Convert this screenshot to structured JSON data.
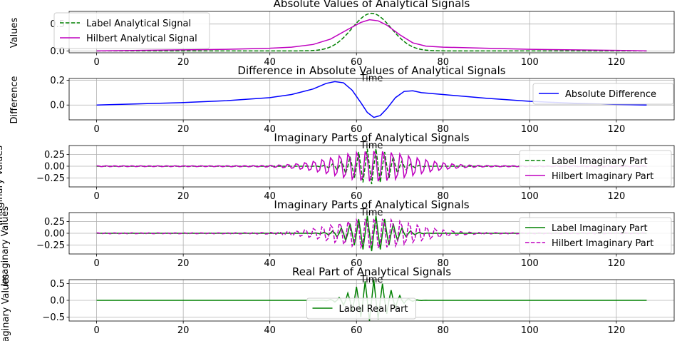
{
  "chart_data": [
    {
      "type": "line",
      "title": "Absolute Values of Analytical Signals",
      "xlabel": "Time",
      "ylabel": "Values",
      "xlim": [
        -6.35,
        133.35
      ],
      "ylim": [
        -0.035,
        0.735
      ],
      "x_ticks": [
        0,
        20,
        40,
        60,
        80,
        100,
        120
      ],
      "y_ticks": [
        0.0,
        0.5
      ],
      "y_tick_labels": [
        "0.0",
        "0.5"
      ],
      "grid": true,
      "legend_placement": "upper-left",
      "legend": [
        "Label Analytical Signal",
        "Hilbert Analytical Signal"
      ],
      "series": [
        {
          "name": "Label Analytical Signal",
          "color": "#008000",
          "style": "dashed",
          "kind": "envelope",
          "generator": {
            "amplitude": 0.7,
            "center": 63.5,
            "width": 4.5,
            "floor": 0.0
          }
        },
        {
          "name": "Hilbert Analytical Signal",
          "color": "#bf00bf",
          "style": "solid",
          "points": [
            [
              0,
              0.0
            ],
            [
              10,
              0.01
            ],
            [
              20,
              0.02
            ],
            [
              30,
              0.03
            ],
            [
              40,
              0.05
            ],
            [
              45,
              0.07
            ],
            [
              50,
              0.12
            ],
            [
              54,
              0.22
            ],
            [
              58,
              0.4
            ],
            [
              61,
              0.53
            ],
            [
              63,
              0.58
            ],
            [
              65,
              0.56
            ],
            [
              67,
              0.48
            ],
            [
              70,
              0.3
            ],
            [
              73,
              0.15
            ],
            [
              76,
              0.09
            ],
            [
              80,
              0.07
            ],
            [
              90,
              0.05
            ],
            [
              100,
              0.03
            ],
            [
              110,
              0.02
            ],
            [
              120,
              0.01
            ],
            [
              127,
              0.0
            ]
          ]
        }
      ]
    },
    {
      "type": "line",
      "title": "Difference in Absolute Values of Analytical Signals",
      "xlabel": "Time",
      "ylabel": "Difference",
      "xlim": [
        -6.35,
        133.35
      ],
      "ylim": [
        -0.12,
        0.215
      ],
      "x_ticks": [
        0,
        20,
        40,
        60,
        80,
        100,
        120
      ],
      "y_ticks": [
        0.0,
        0.2
      ],
      "y_tick_labels": [
        "0.0",
        "0.2"
      ],
      "grid": true,
      "legend_placement": "right",
      "legend": [
        "Absolute Difference"
      ],
      "series": [
        {
          "name": "Absolute Difference",
          "color": "#0000ff",
          "style": "solid",
          "points": [
            [
              0,
              0.0
            ],
            [
              20,
              0.02
            ],
            [
              30,
              0.035
            ],
            [
              40,
              0.06
            ],
            [
              45,
              0.085
            ],
            [
              50,
              0.13
            ],
            [
              53,
              0.175
            ],
            [
              55,
              0.19
            ],
            [
              57,
              0.18
            ],
            [
              59,
              0.12
            ],
            [
              61,
              0.02
            ],
            [
              62.5,
              -0.06
            ],
            [
              64,
              -0.1
            ],
            [
              65.5,
              -0.085
            ],
            [
              67,
              -0.03
            ],
            [
              69,
              0.06
            ],
            [
              71,
              0.11
            ],
            [
              73,
              0.115
            ],
            [
              75,
              0.1
            ],
            [
              80,
              0.085
            ],
            [
              90,
              0.055
            ],
            [
              100,
              0.03
            ],
            [
              110,
              0.015
            ],
            [
              120,
              0.005
            ],
            [
              127,
              0.0
            ]
          ]
        }
      ]
    },
    {
      "type": "line",
      "title": "Imaginary Parts of Analytical Signals",
      "xlabel": "Time",
      "ylabel": "Imaginary Values",
      "xlim": [
        -6.35,
        133.35
      ],
      "ylim": [
        -0.44,
        0.44
      ],
      "x_ticks": [
        0,
        20,
        40,
        60,
        80,
        100,
        120
      ],
      "y_ticks": [
        -0.25,
        0.0,
        0.25
      ],
      "y_tick_labels": [
        "−0.25",
        "0.00",
        "0.25"
      ],
      "grid": true,
      "legend_placement": "right",
      "legend": [
        "Label Imaginary Part",
        "Hilbert Imaginary Part"
      ],
      "series": [
        {
          "name": "Label Imaginary Part",
          "color": "#008000",
          "style": "dashed",
          "kind": "oscillation",
          "generator": {
            "amplitude": 0.38,
            "center": 63.5,
            "width": 4.5,
            "floor": 0.0,
            "phase": 0.0
          }
        },
        {
          "name": "Hilbert Imaginary Part",
          "color": "#bf00bf",
          "style": "solid",
          "kind": "oscillation",
          "generator": {
            "amplitude": 0.37,
            "center": 64.0,
            "width": 9.0,
            "floor": 0.012,
            "phase": 1.0
          }
        }
      ]
    },
    {
      "type": "line",
      "title": "Imaginary Parts of Analytical Signals",
      "xlabel": "Time",
      "ylabel": "Imaginary Values",
      "xlim": [
        -6.35,
        133.35
      ],
      "ylim": [
        -0.44,
        0.44
      ],
      "x_ticks": [
        0,
        20,
        40,
        60,
        80,
        100,
        120
      ],
      "y_ticks": [
        -0.25,
        0.0,
        0.25
      ],
      "y_tick_labels": [
        "−0.25",
        "0.00",
        "0.25"
      ],
      "grid": true,
      "legend_placement": "right",
      "legend": [
        "Label Imaginary Part",
        "Hilbert Imaginary Part"
      ],
      "series": [
        {
          "name": "Label Imaginary Part",
          "color": "#008000",
          "style": "solid",
          "kind": "oscillation",
          "generator": {
            "amplitude": 0.38,
            "center": 63.5,
            "width": 4.5,
            "floor": 0.0,
            "phase": 0.0
          }
        },
        {
          "name": "Hilbert Imaginary Part",
          "color": "#bf00bf",
          "style": "dashed",
          "kind": "oscillation",
          "generator": {
            "amplitude": 0.36,
            "center": 64.0,
            "width": 9.0,
            "floor": 0.012,
            "phase": 1.0
          }
        }
      ]
    },
    {
      "type": "line",
      "title": "Real Part of Analytical Signals",
      "xlabel": "",
      "ylabel": "Imaginary Values",
      "xlim": [
        -6.35,
        133.35
      ],
      "ylim": [
        -0.62,
        0.62
      ],
      "x_ticks": [
        0,
        20,
        40,
        60,
        80,
        100,
        120
      ],
      "y_ticks": [
        -0.5,
        0.0,
        0.5
      ],
      "y_tick_labels": [
        "−0.5",
        "0.0",
        "0.5"
      ],
      "grid": true,
      "legend_placement": "lower-center",
      "legend": [
        "Label Real Part"
      ],
      "series": [
        {
          "name": "Label Real Part",
          "color": "#008000",
          "style": "solid",
          "kind": "oscillation",
          "generator": {
            "amplitude": 0.62,
            "center": 63.5,
            "width": 3.8,
            "floor": 0.0,
            "phase": 1.5708
          }
        }
      ]
    }
  ]
}
